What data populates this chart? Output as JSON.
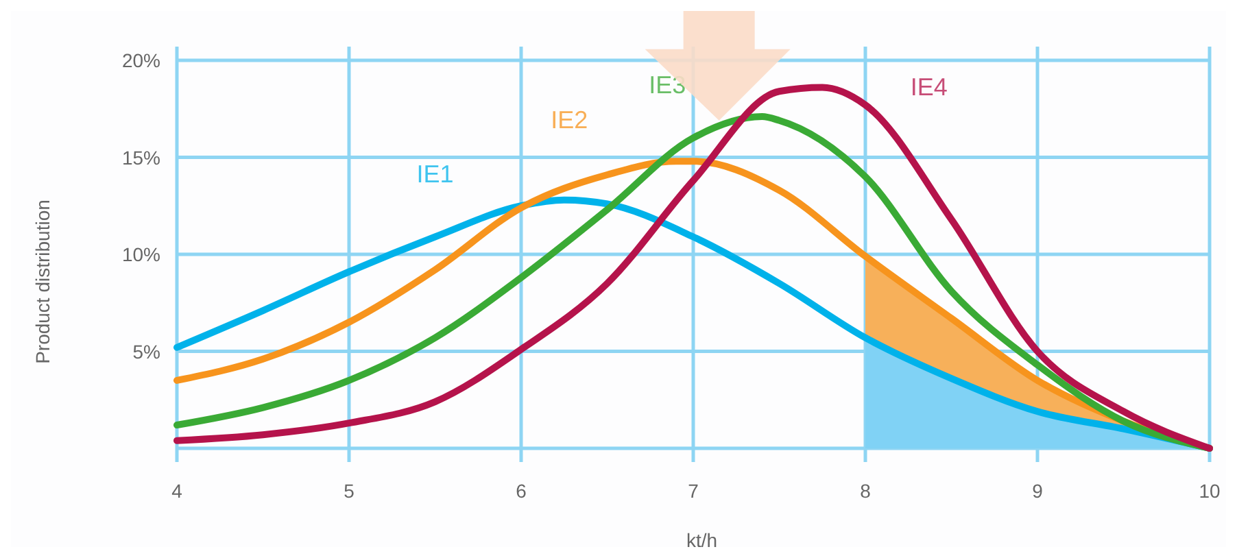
{
  "chart_data": {
    "type": "line",
    "xlabel": "kt/h",
    "ylabel": "Product distribution",
    "xlim": [
      4,
      10
    ],
    "ylim": [
      0,
      20
    ],
    "xticks": [
      4,
      5,
      6,
      7,
      8,
      9,
      10
    ],
    "yticks": [
      {
        "value": 0,
        "label": null
      },
      {
        "value": 5,
        "label": "5%"
      },
      {
        "value": 10,
        "label": "10%"
      },
      {
        "value": 15,
        "label": "15%"
      },
      {
        "value": 20,
        "label": "20%"
      }
    ],
    "grid": true,
    "series": [
      {
        "type": "area",
        "color": "#f7b05a",
        "x": [
          8,
          8.5,
          9,
          9.5,
          10
        ],
        "values": [
          9.9,
          6.7,
          3.5,
          1.4,
          0
        ]
      },
      {
        "type": "area",
        "color": "#80d2f5",
        "x": [
          8,
          8.5,
          9,
          9.5,
          10
        ],
        "values": [
          5.7,
          3.6,
          1.9,
          1.0,
          0
        ]
      },
      {
        "name": "IE1",
        "color": "#00b2ea",
        "x": [
          4,
          4.5,
          5,
          5.5,
          6,
          6.25,
          6.5,
          7,
          7.5,
          8,
          8.5,
          9,
          9.5,
          10
        ],
        "values": [
          5.2,
          7.1,
          9.1,
          10.9,
          12.5,
          12.8,
          12.6,
          10.9,
          8.5,
          5.7,
          3.6,
          1.9,
          1.0,
          0
        ]
      },
      {
        "name": "IE2",
        "color": "#f7941d",
        "x": [
          4,
          4.5,
          5,
          5.5,
          6,
          6.5,
          6.9,
          7,
          7.5,
          8,
          8.5,
          9,
          9.5,
          10
        ],
        "values": [
          3.5,
          4.6,
          6.5,
          9.2,
          12.4,
          14.1,
          14.8,
          14.8,
          13.3,
          9.9,
          6.7,
          3.5,
          1.4,
          0
        ]
      },
      {
        "name": "IE3",
        "color": "#3aaa35",
        "x": [
          4,
          4.5,
          5,
          5.5,
          6,
          6.5,
          7,
          7.4,
          7.5,
          8,
          8.5,
          9,
          9.5,
          10
        ],
        "values": [
          1.2,
          2.1,
          3.5,
          5.7,
          8.8,
          12.3,
          16.0,
          17.1,
          16.9,
          14.0,
          8.1,
          4.3,
          1.4,
          0
        ]
      },
      {
        "name": "IE4",
        "color": "#b5134b",
        "x": [
          4,
          4.5,
          5,
          5.5,
          6,
          6.5,
          7,
          7.5,
          7.75,
          8,
          8.5,
          9,
          9.5,
          10
        ],
        "values": [
          0.4,
          0.7,
          1.3,
          2.4,
          5.1,
          8.5,
          13.8,
          18.4,
          18.6,
          17.7,
          11.8,
          5.0,
          1.9,
          0
        ]
      }
    ]
  }
}
